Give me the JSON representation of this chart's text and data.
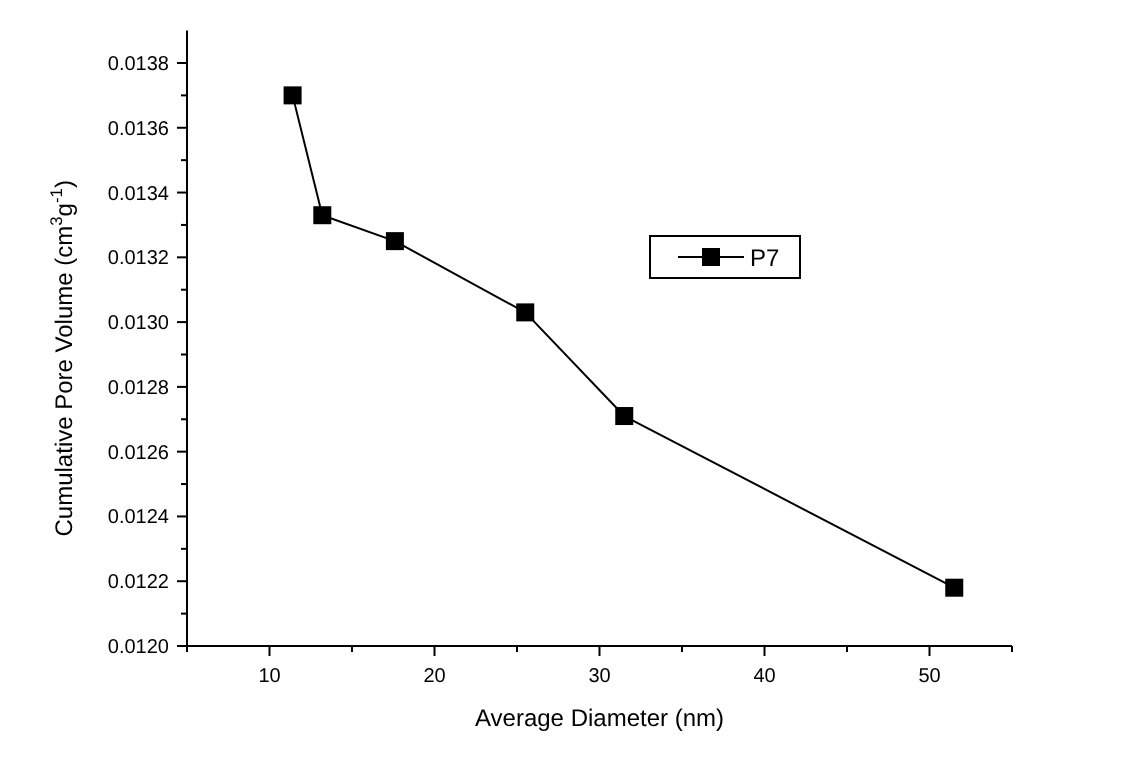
{
  "chart_data": {
    "type": "line",
    "xlabel": "Average Diameter (nm)",
    "ylabel": "Cumulative Pore Volume (cm$^{3}$g$^{-1}$)",
    "x": [
      11.4,
      13.2,
      17.6,
      25.5,
      31.5,
      51.5
    ],
    "series": [
      {
        "name": "P7",
        "color": "#000000",
        "values": [
          0.0137,
          0.01333,
          0.01325,
          0.01303,
          0.01271,
          0.01218
        ]
      }
    ],
    "xlim": [
      5,
      55
    ],
    "xticks": [
      {
        "value": 5,
        "label": null
      },
      10,
      {
        "value": 15,
        "label": null
      },
      20,
      {
        "value": 25,
        "label": null
      },
      30,
      {
        "value": 35,
        "label": null
      },
      40,
      {
        "value": 45,
        "label": null
      },
      50,
      {
        "value": 55,
        "label": null
      }
    ],
    "ylim": [
      0.012,
      0.0139
    ],
    "yticks": [
      {
        "value": 0.012,
        "label": "0.0120"
      },
      {
        "value": 0.0121,
        "label": null
      },
      0.0122,
      {
        "value": 0.0123,
        "label": null
      },
      0.0124,
      {
        "value": 0.0125,
        "label": null
      },
      0.0126,
      {
        "value": 0.0127,
        "label": null
      },
      0.0128,
      {
        "value": 0.0129,
        "label": null
      },
      {
        "value": 0.013,
        "label": "0.0130"
      },
      {
        "value": 0.0131,
        "label": null
      },
      0.0132,
      {
        "value": 0.0133,
        "label": null
      },
      0.0134,
      {
        "value": 0.0135,
        "label": null
      },
      0.0136,
      {
        "value": 0.0137,
        "label": null
      },
      0.0138
    ],
    "marker": "square",
    "line_style": "solid",
    "legend": "right",
    "grid": false
  }
}
